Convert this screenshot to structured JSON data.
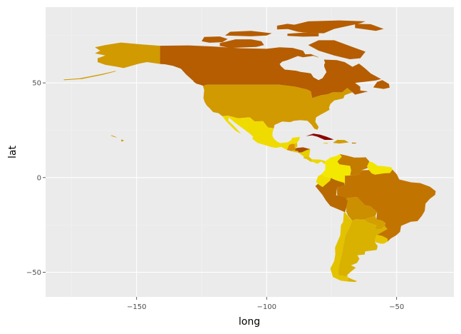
{
  "chart_data": {
    "type": "map",
    "title": "",
    "xlabel": "long",
    "ylabel": "lat",
    "xlim": [
      -185,
      -28
    ],
    "ylim": [
      -63,
      90
    ],
    "x_ticks": [
      -150,
      -100,
      -50
    ],
    "x_tick_labels": [
      "−150",
      "−100",
      "−50"
    ],
    "y_ticks": [
      50,
      0,
      -50
    ],
    "y_tick_labels": [
      "50",
      "0",
      "−50"
    ],
    "x_minor_ticks": [
      -175,
      -125,
      -75
    ],
    "y_minor_ticks": [
      75,
      25,
      -25
    ],
    "grid": true,
    "legend": "none",
    "colors": {
      "panel": "#ebebeb",
      "grid_major": "#ffffff",
      "grid_minor": "#f2f2f2",
      "canada": "#b55d00",
      "alaska": "#d19a00",
      "usa": "#d19a00",
      "mexico": "#f0db00",
      "cuba": "#8b0000",
      "brazil": "#c27400",
      "peru": "#b86a00",
      "colombia": "#f3e800",
      "venezuela": "#c37b00",
      "guianas": "#f2e500",
      "ecuador": "#f0dd00",
      "bolivia": "#cc8f00",
      "chile": "#e3c200",
      "argentina": "#d9b200",
      "paraguay": "#d4a000",
      "uruguay": "#e6c400",
      "central_america": "#e1c200",
      "guatemala": "#d99000",
      "honduras": "#a94b00",
      "nicaragua": "#e6d000",
      "panama": "#ecd700",
      "hispaniola": "#d29b00",
      "puerto_rico": "#c67d00"
    }
  }
}
